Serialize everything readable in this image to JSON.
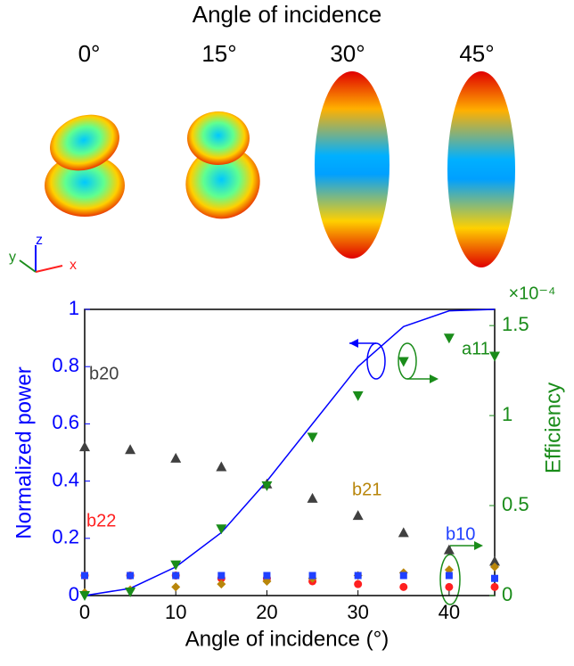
{
  "header": {
    "title": "Angle of incidence",
    "angles": [
      "0°",
      "15°",
      "30°",
      "45°"
    ],
    "axes": [
      "x",
      "y",
      "z"
    ]
  },
  "chart_data": {
    "type": "scatter-line",
    "xlabel": "Angle of incidence (°)",
    "ylabel": "Normalized power",
    "y2label": "Efficiency",
    "y2_multiplier": "×10⁻⁴",
    "x": [
      0,
      5,
      10,
      15,
      20,
      25,
      30,
      35,
      40,
      45
    ],
    "xlim": [
      0,
      45
    ],
    "xticks": [
      0,
      10,
      20,
      30,
      40
    ],
    "ylim": [
      0,
      1
    ],
    "yticks": [
      0,
      0.2,
      0.4,
      0.6,
      0.8,
      1
    ],
    "y2lim": [
      0,
      1.59
    ],
    "y2ticks": [
      0,
      0.5,
      1,
      1.5
    ],
    "series": [
      {
        "color": "#0000ff",
        "marker": "line",
        "values": [
          0,
          0.025,
          0.1,
          0.22,
          0.4,
          0.6,
          0.8,
          0.94,
          0.995,
          1
        ]
      },
      {
        "name": "b20",
        "color": "#404040",
        "marker": "triangle-up",
        "values": [
          0.52,
          0.51,
          0.48,
          0.45,
          0.39,
          0.34,
          0.28,
          0.22,
          0.16,
          0.12
        ]
      },
      {
        "name": "b22",
        "color": "#ff2020",
        "marker": "circle",
        "values": [
          0.07,
          0.07,
          0.07,
          0.06,
          0.06,
          0.05,
          0.04,
          0.03,
          0.03,
          0.03
        ]
      },
      {
        "name": "b21",
        "color": "#b8860b",
        "marker": "diamond",
        "values": [
          0.01,
          0.02,
          0.03,
          0.04,
          0.05,
          0.06,
          0.07,
          0.08,
          0.09,
          0.1
        ]
      },
      {
        "name": "b10",
        "color": "#2040ff",
        "marker": "square",
        "values": [
          0.07,
          0.07,
          0.07,
          0.07,
          0.07,
          0.07,
          0.07,
          0.07,
          0.07,
          0.06
        ]
      },
      {
        "name": "a11",
        "color": "#1a8c1a",
        "marker": "triangle-down",
        "axis": "y2",
        "values": [
          0,
          0.02,
          0.17,
          0.37,
          0.61,
          0.88,
          1.11,
          1.3,
          1.43,
          1.33
        ]
      }
    ]
  }
}
